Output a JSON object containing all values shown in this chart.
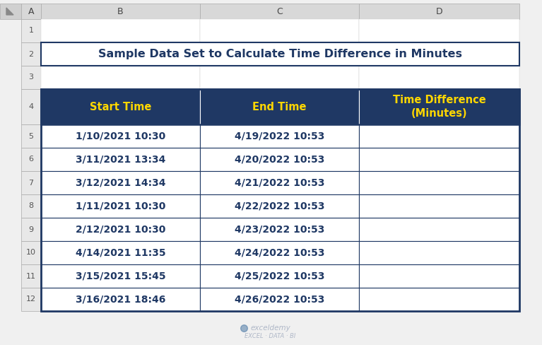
{
  "title": "Sample Data Set to Calculate Time Difference in Minutes",
  "title_color": "#1F3864",
  "title_fontsize": 11.5,
  "header_bg_color": "#1F3864",
  "header_text_color": "#FFD700",
  "header_labels": [
    "Start Time",
    "End Time",
    "Time Difference\n(Minutes)"
  ],
  "row_data": [
    [
      "1/10/2021 10:30",
      "4/19/2022 10:53",
      ""
    ],
    [
      "3/11/2021 13:34",
      "4/20/2022 10:53",
      ""
    ],
    [
      "3/12/2021 14:34",
      "4/21/2022 10:53",
      ""
    ],
    [
      "1/11/2021 10:30",
      "4/22/2022 10:53",
      ""
    ],
    [
      "2/12/2021 10:30",
      "4/23/2022 10:53",
      ""
    ],
    [
      "4/14/2021 11:35",
      "4/24/2022 10:53",
      ""
    ],
    [
      "3/15/2021 15:45",
      "4/25/2022 10:53",
      ""
    ],
    [
      "3/16/2021 18:46",
      "4/26/2022 10:53",
      ""
    ]
  ],
  "row_text_color": "#1F3864",
  "border_color": "#1F3864",
  "col_headers": [
    "A",
    "B",
    "C",
    "D"
  ],
  "excel_bg_color": "#F0F0F0",
  "col_header_bg": "#D8D8D8",
  "row_header_bg": "#E8E8E8",
  "watermark_line1": "exceldemy",
  "watermark_line2": "EXCEL · DATA · BI",
  "watermark_color": "#B0B8C8"
}
